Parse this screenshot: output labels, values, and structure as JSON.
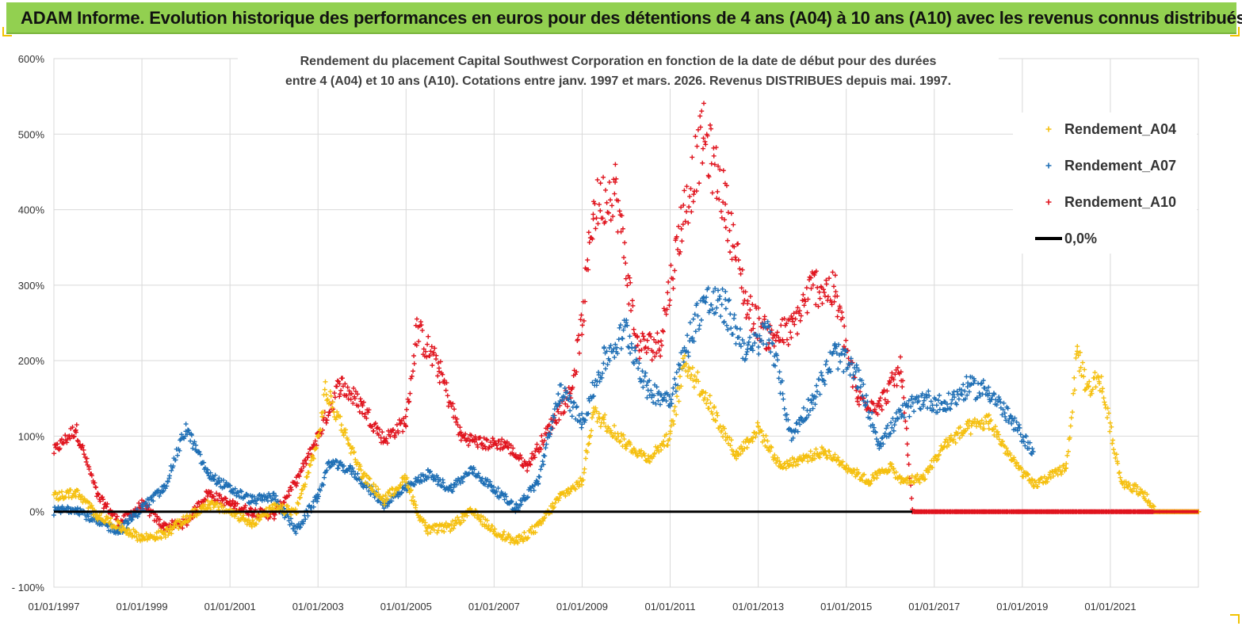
{
  "banner": {
    "text": "ADAM Informe. Evolution historique des performances en euros pour des détentions de 4 ans (A04) à 10 ans (A10) avec les revenus connus distribués"
  },
  "chart_data": {
    "type": "scatter",
    "title_lines": [
      "Rendement du placement Capital Southwest Corporation en fonction de la date de début pour des durées",
      "entre 4 (A04) et 10 ans (A10).  Cotations entre janv. 1997 et mars. 2026. Revenus DISTRIBUES depuis mai. 1997."
    ],
    "xlabel": "",
    "ylabel": "",
    "x_range": [
      "01/01/1997",
      "01/01/2023"
    ],
    "ylim": [
      -100,
      600
    ],
    "y_ticks": [
      -100,
      0,
      100,
      200,
      300,
      400,
      500,
      600
    ],
    "y_tick_labels": [
      "- 100%",
      "0%",
      "100%",
      "200%",
      "300%",
      "400%",
      "500%",
      "600%"
    ],
    "x_tick_labels": [
      "01/01/1997",
      "01/01/1999",
      "01/01/2001",
      "01/01/2003",
      "01/01/2005",
      "01/01/2007",
      "01/01/2009",
      "01/01/2011",
      "01/01/2013",
      "01/01/2015",
      "01/01/2017",
      "01/01/2019",
      "01/01/2021"
    ],
    "grid": true,
    "legend_position": "top-right",
    "series": [
      {
        "name": "Rendement_A04",
        "color": "#f5c010",
        "marker": "plus",
        "points": [
          [
            "1997-01",
            20
          ],
          [
            "1997-07",
            25
          ],
          [
            "1998-01",
            -5
          ],
          [
            "1998-07",
            -20
          ],
          [
            "1999-01",
            -35
          ],
          [
            "1999-07",
            -30
          ],
          [
            "2000-01",
            -10
          ],
          [
            "2000-07",
            10
          ],
          [
            "2001-01",
            0
          ],
          [
            "2001-07",
            -15
          ],
          [
            "2002-01",
            5
          ],
          [
            "2002-07",
            0
          ],
          [
            "2003-01",
            95
          ],
          [
            "2003-03",
            160
          ],
          [
            "2003-07",
            120
          ],
          [
            "2004-01",
            50
          ],
          [
            "2004-07",
            15
          ],
          [
            "2005-01",
            45
          ],
          [
            "2005-04",
            0
          ],
          [
            "2005-07",
            -25
          ],
          [
            "2006-01",
            -20
          ],
          [
            "2006-07",
            0
          ],
          [
            "2007-01",
            -25
          ],
          [
            "2007-07",
            -40
          ],
          [
            "2008-01",
            -20
          ],
          [
            "2008-07",
            20
          ],
          [
            "2009-01",
            40
          ],
          [
            "2009-04",
            130
          ],
          [
            "2009-07",
            120
          ],
          [
            "2010-01",
            90
          ],
          [
            "2010-07",
            70
          ],
          [
            "2011-01",
            100
          ],
          [
            "2011-05",
            200
          ],
          [
            "2011-10",
            160
          ],
          [
            "2012-01",
            130
          ],
          [
            "2012-07",
            75
          ],
          [
            "2013-01",
            110
          ],
          [
            "2013-07",
            60
          ],
          [
            "2014-01",
            70
          ],
          [
            "2014-07",
            80
          ],
          [
            "2015-01",
            60
          ],
          [
            "2015-07",
            40
          ],
          [
            "2016-01",
            60
          ],
          [
            "2016-04",
            40
          ],
          [
            "2016-10",
            45
          ],
          [
            "2017-04",
            90
          ],
          [
            "2017-10",
            110
          ],
          [
            "2018-04",
            120
          ],
          [
            "2018-10",
            70
          ],
          [
            "2019-04",
            35
          ],
          [
            "2019-10",
            50
          ],
          [
            "2020-01",
            60
          ],
          [
            "2020-04",
            210
          ],
          [
            "2020-07",
            160
          ],
          [
            "2020-10",
            180
          ],
          [
            "2021-04",
            40
          ],
          [
            "2021-10",
            25
          ],
          [
            "2022-01",
            0
          ],
          [
            "2023-01",
            0
          ]
        ]
      },
      {
        "name": "Rendement_A07",
        "color": "#1f6fb5",
        "marker": "plus",
        "points": [
          [
            "1997-01",
            0
          ],
          [
            "1997-07",
            5
          ],
          [
            "1998-01",
            -15
          ],
          [
            "1998-07",
            -25
          ],
          [
            "1999-01",
            5
          ],
          [
            "1999-07",
            30
          ],
          [
            "2000-01",
            110
          ],
          [
            "2000-07",
            50
          ],
          [
            "2001-01",
            30
          ],
          [
            "2001-07",
            15
          ],
          [
            "2002-01",
            20
          ],
          [
            "2002-07",
            -25
          ],
          [
            "2003-01",
            20
          ],
          [
            "2003-04",
            65
          ],
          [
            "2003-10",
            55
          ],
          [
            "2004-07",
            10
          ],
          [
            "2005-01",
            30
          ],
          [
            "2005-07",
            50
          ],
          [
            "2006-01",
            30
          ],
          [
            "2006-07",
            55
          ],
          [
            "2007-01",
            30
          ],
          [
            "2007-07",
            5
          ],
          [
            "2008-01",
            40
          ],
          [
            "2008-07",
            160
          ],
          [
            "2009-01",
            120
          ],
          [
            "2009-07",
            200
          ],
          [
            "2010-01",
            240
          ],
          [
            "2010-07",
            160
          ],
          [
            "2011-01",
            150
          ],
          [
            "2011-07",
            240
          ],
          [
            "2011-10",
            280
          ],
          [
            "2012-04",
            270
          ],
          [
            "2012-10",
            210
          ],
          [
            "2013-04",
            240
          ],
          [
            "2013-10",
            100
          ],
          [
            "2014-04",
            150
          ],
          [
            "2014-10",
            210
          ],
          [
            "2015-04",
            180
          ],
          [
            "2015-10",
            90
          ],
          [
            "2016-04",
            130
          ],
          [
            "2016-10",
            150
          ],
          [
            "2017-04",
            140
          ],
          [
            "2017-10",
            165
          ],
          [
            "2018-04",
            160
          ],
          [
            "2018-10",
            120
          ],
          [
            "2019-04",
            80
          ]
        ]
      },
      {
        "name": "Rendement_A10",
        "color": "#e0141e",
        "marker": "plus",
        "points": [
          [
            "1997-01",
            80
          ],
          [
            "1997-07",
            110
          ],
          [
            "1998-01",
            20
          ],
          [
            "1998-07",
            -15
          ],
          [
            "1999-01",
            10
          ],
          [
            "1999-07",
            -20
          ],
          [
            "2000-01",
            -15
          ],
          [
            "2000-07",
            25
          ],
          [
            "2001-01",
            10
          ],
          [
            "2001-07",
            0
          ],
          [
            "2002-01",
            -5
          ],
          [
            "2002-07",
            40
          ],
          [
            "2003-01",
            100
          ],
          [
            "2003-07",
            170
          ],
          [
            "2004-01",
            140
          ],
          [
            "2004-07",
            95
          ],
          [
            "2005-01",
            120
          ],
          [
            "2005-04",
            240
          ],
          [
            "2005-10",
            190
          ],
          [
            "2006-04",
            100
          ],
          [
            "2006-10",
            90
          ],
          [
            "2007-04",
            90
          ],
          [
            "2007-10",
            60
          ],
          [
            "2008-04",
            110
          ],
          [
            "2008-10",
            160
          ],
          [
            "2009-01",
            250
          ],
          [
            "2009-04",
            400
          ],
          [
            "2009-10",
            430
          ],
          [
            "2010-04",
            220
          ],
          [
            "2010-10",
            220
          ],
          [
            "2011-04",
            380
          ],
          [
            "2011-10",
            500
          ],
          [
            "2012-04",
            410
          ],
          [
            "2012-10",
            270
          ],
          [
            "2013-04",
            230
          ],
          [
            "2013-10",
            240
          ],
          [
            "2014-04",
            300
          ],
          [
            "2014-10",
            290
          ],
          [
            "2015-04",
            150
          ],
          [
            "2015-10",
            140
          ],
          [
            "2016-04",
            190
          ],
          [
            "2016-07",
            0
          ],
          [
            "2023-01",
            0
          ]
        ]
      },
      {
        "name": "0,0%",
        "color": "#000000",
        "marker": "line",
        "points": [
          [
            "1997-01",
            0
          ],
          [
            "2023-01",
            0
          ]
        ]
      }
    ]
  }
}
